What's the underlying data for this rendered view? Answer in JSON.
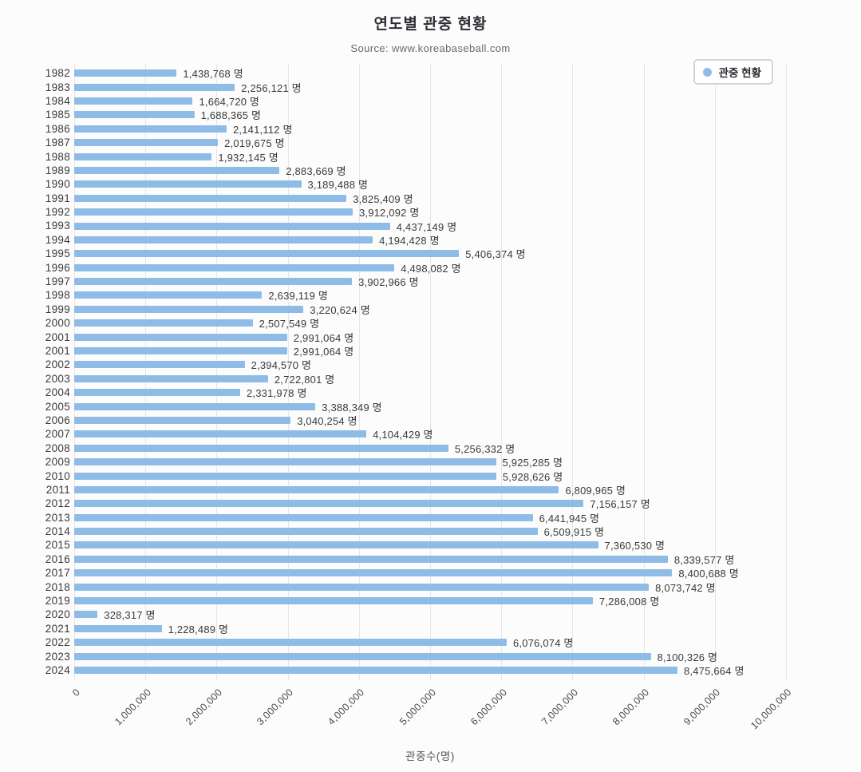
{
  "chart_data": {
    "type": "bar",
    "orientation": "horizontal",
    "title": "연도별 관중 현황",
    "subtitle": "Source: www.koreabaseball.com",
    "xlabel": "관중수(명)",
    "ylabel": "",
    "unit": "명",
    "grid": true,
    "legend": [
      "관중 현황"
    ],
    "legend_position": "top-right",
    "bar_color": "#8FBCE6",
    "xlim": [
      0,
      10000000
    ],
    "x_ticks": [
      0,
      1000000,
      2000000,
      3000000,
      4000000,
      5000000,
      6000000,
      7000000,
      8000000,
      9000000,
      10000000
    ],
    "x_tick_labels": [
      "0",
      "1,000,000",
      "2,000,000",
      "3,000,000",
      "4,000,000",
      "5,000,000",
      "6,000,000",
      "7,000,000",
      "8,000,000",
      "9,000,000",
      "10,000,000"
    ],
    "categories": [
      "1982",
      "1983",
      "1984",
      "1985",
      "1986",
      "1987",
      "1988",
      "1989",
      "1990",
      "1991",
      "1992",
      "1993",
      "1994",
      "1995",
      "1996",
      "1997",
      "1998",
      "1999",
      "2000",
      "2001",
      "2001",
      "2002",
      "2003",
      "2004",
      "2005",
      "2006",
      "2007",
      "2008",
      "2009",
      "2010",
      "2011",
      "2012",
      "2013",
      "2014",
      "2015",
      "2016",
      "2017",
      "2018",
      "2019",
      "2020",
      "2021",
      "2022",
      "2023",
      "2024"
    ],
    "values": [
      1438768,
      2256121,
      1664720,
      1688365,
      2141112,
      2019675,
      1932145,
      2883669,
      3189488,
      3825409,
      3912092,
      4437149,
      4194428,
      5406374,
      4498082,
      3902966,
      2639119,
      3220624,
      2507549,
      2991064,
      2991064,
      2394570,
      2722801,
      2331978,
      3388349,
      3040254,
      4104429,
      5256332,
      5925285,
      5928626,
      6809965,
      7156157,
      6441945,
      6509915,
      7360530,
      8339577,
      8400688,
      8073742,
      7286008,
      328317,
      1228489,
      6076074,
      8100326,
      8475664
    ]
  }
}
